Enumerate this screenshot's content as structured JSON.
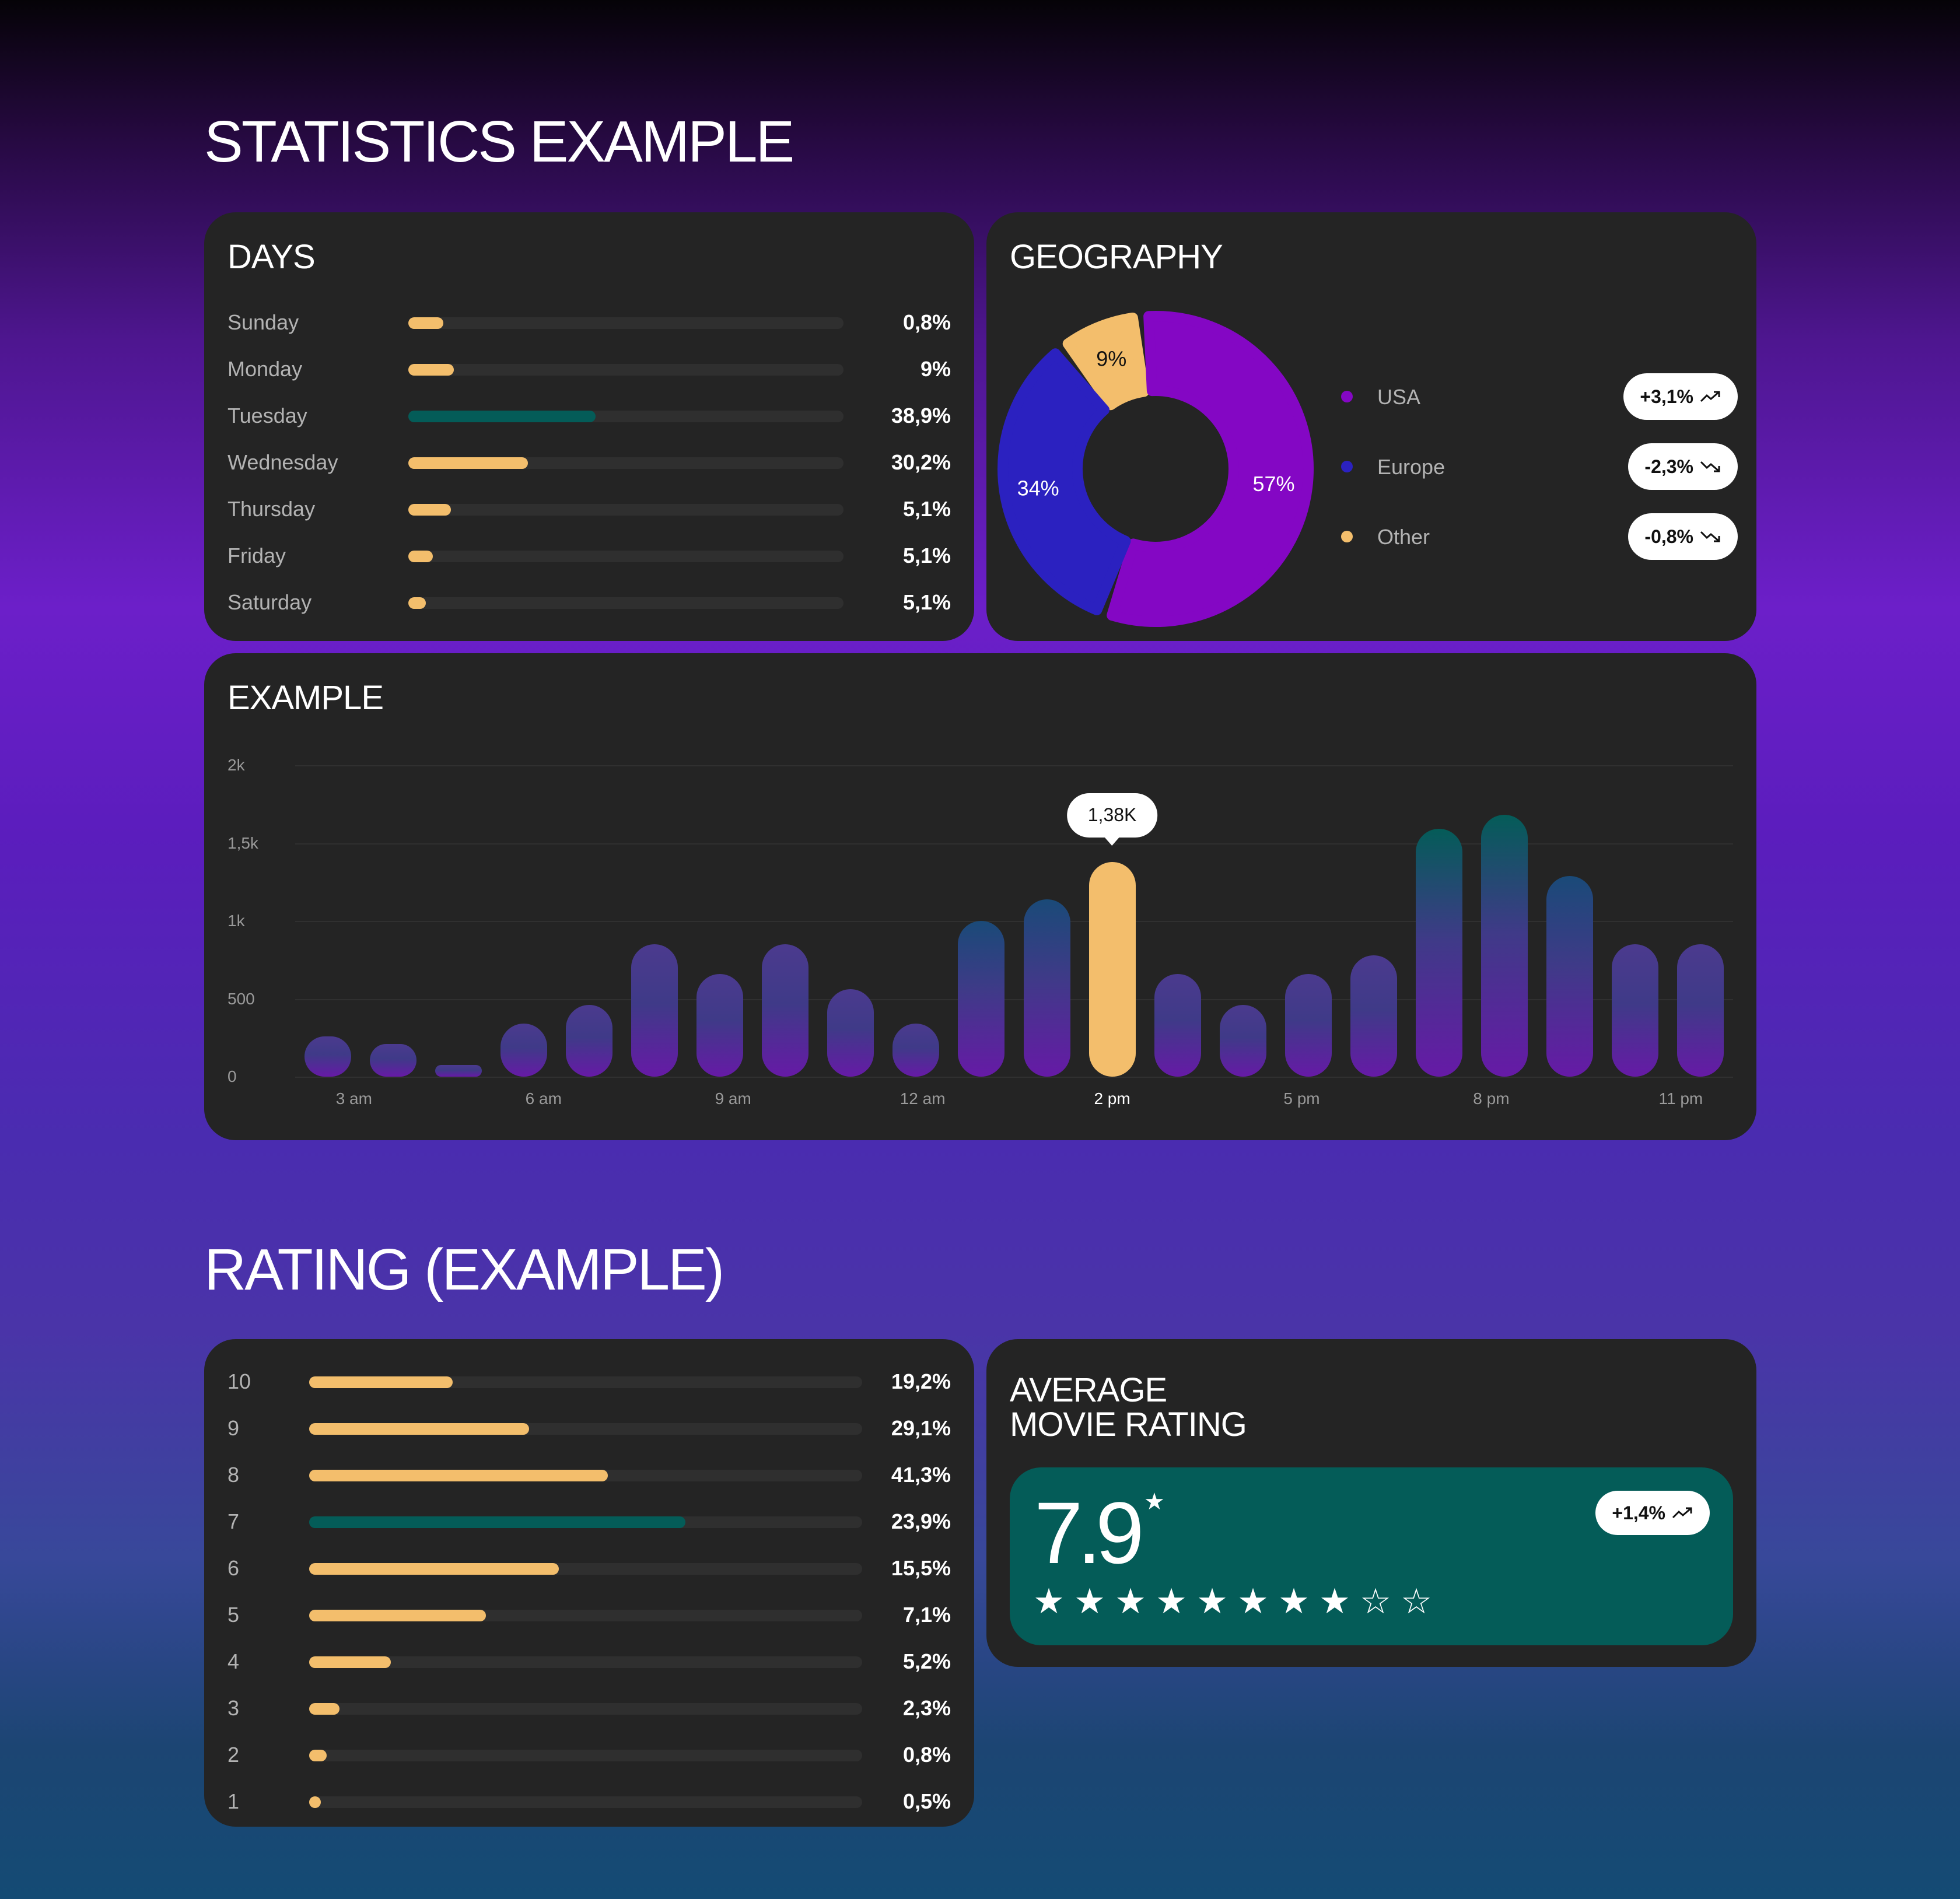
{
  "titles": {
    "statistics": "STATISTICS EXAMPLE",
    "rating": "RATING (EXAMPLE)"
  },
  "colors": {
    "accent_orange": "#f3be6c",
    "accent_teal": "#045c58",
    "usa": "#8407c4",
    "europe": "#2b21c0",
    "other": "#f3be6c",
    "card_bg": "#242424"
  },
  "days": {
    "title": "DAYS",
    "rows": [
      {
        "label": "Sunday",
        "value": "0,8%",
        "fill": 0.08,
        "teal": false
      },
      {
        "label": "Monday",
        "value": "9%",
        "fill": 0.105,
        "teal": false
      },
      {
        "label": "Tuesday",
        "value": "38,9%",
        "fill": 0.43,
        "teal": true
      },
      {
        "label": "Wednesday",
        "value": "30,2%",
        "fill": 0.275,
        "teal": false
      },
      {
        "label": "Thursday",
        "value": "5,1%",
        "fill": 0.098,
        "teal": false
      },
      {
        "label": "Friday",
        "value": "5,1%",
        "fill": 0.056,
        "teal": false
      },
      {
        "label": "Saturday",
        "value": "5,1%",
        "fill": 0.04,
        "teal": false
      }
    ]
  },
  "geography": {
    "title": "GEOGRAPHY",
    "slices": [
      {
        "label": "9%",
        "value": 9,
        "color": "#f3be6c"
      },
      {
        "label": "57%",
        "value": 57,
        "color": "#8407c4"
      },
      {
        "label": "34%",
        "value": 34,
        "color": "#2b21c0"
      }
    ],
    "legend": [
      {
        "name": "USA",
        "color": "#8407c4",
        "change": "+3,1%",
        "trend": "up"
      },
      {
        "name": "Europe",
        "color": "#2b21c0",
        "change": "-2,3%",
        "trend": "down"
      },
      {
        "name": "Other",
        "color": "#f3be6c",
        "change": "-0,8%",
        "trend": "down"
      }
    ]
  },
  "chart_data": {
    "type": "bar",
    "title": "EXAMPLE",
    "y_ticks": [
      "0",
      "500",
      "1k",
      "1,5k",
      "2k"
    ],
    "ylim": [
      0,
      2000
    ],
    "x_tick_labels": [
      {
        "label": "3 am",
        "index": 0.4
      },
      {
        "label": "6 am",
        "index": 3.3
      },
      {
        "label": "9 am",
        "index": 6.2
      },
      {
        "label": "12 am",
        "index": 9.1
      },
      {
        "label": "2 pm",
        "index": 12.0,
        "active": true
      },
      {
        "label": "5 pm",
        "index": 14.9
      },
      {
        "label": "8 pm",
        "index": 17.8
      },
      {
        "label": "11 pm",
        "index": 20.7
      }
    ],
    "values": [
      260,
      210,
      70,
      340,
      460,
      850,
      660,
      850,
      560,
      340,
      1000,
      1140,
      1380,
      660,
      460,
      660,
      780,
      1590,
      1680,
      1290,
      850,
      850
    ],
    "highlight_index": 12,
    "highlight_label": "1,38K",
    "grid": true
  },
  "rating_distribution": {
    "rows": [
      {
        "label": "10",
        "value": "19,2%",
        "fill": 0.26,
        "teal": false
      },
      {
        "label": "9",
        "value": "29,1%",
        "fill": 0.398,
        "teal": false
      },
      {
        "label": "8",
        "value": "41,3%",
        "fill": 0.54,
        "teal": false
      },
      {
        "label": "7",
        "value": "23,9%",
        "fill": 0.68,
        "teal": true
      },
      {
        "label": "6",
        "value": "15,5%",
        "fill": 0.452,
        "teal": false
      },
      {
        "label": "5",
        "value": "7,1%",
        "fill": 0.32,
        "teal": false
      },
      {
        "label": "4",
        "value": "5,2%",
        "fill": 0.148,
        "teal": false
      },
      {
        "label": "3",
        "value": "2,3%",
        "fill": 0.055,
        "teal": false
      },
      {
        "label": "2",
        "value": "0,8%",
        "fill": 0.032,
        "teal": false
      },
      {
        "label": "1",
        "value": "0,5%",
        "fill": 0.02,
        "teal": false
      }
    ]
  },
  "average": {
    "title_line1": "AVERAGE",
    "title_line2": "MOVIE RATING",
    "score": "7.9",
    "change": "+1,4%",
    "trend": "up",
    "filled_stars": 8,
    "total_stars": 10
  }
}
